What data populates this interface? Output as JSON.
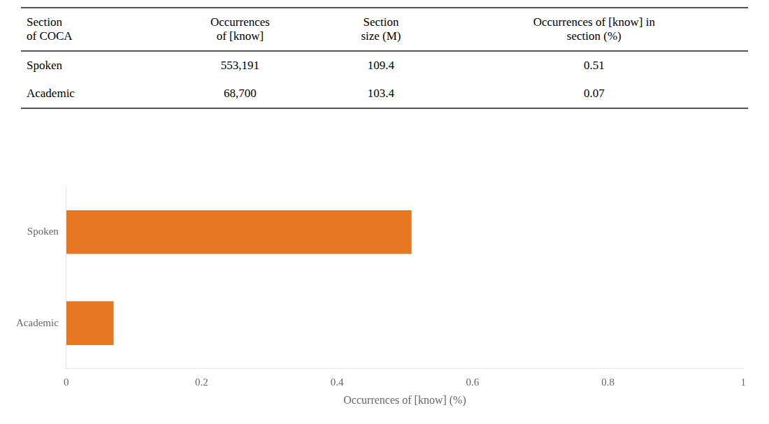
{
  "chart_data": {
    "type": "bar",
    "orientation": "horizontal",
    "table": {
      "headers": [
        "Section\nof COCA",
        "Occurrences\nof [know]",
        "Section\nsize (M)",
        "Occurrences of [know] in\nsection (%)"
      ],
      "rows": [
        [
          "Spoken",
          "553,191",
          "109.4",
          "0.51"
        ],
        [
          "Academic",
          "68,700",
          "103.4",
          "0.07"
        ]
      ]
    },
    "categories": [
      "Spoken",
      "Academic"
    ],
    "values": [
      0.51,
      0.07
    ],
    "color": "#E87722",
    "x_label": "Occurrences of [know] (%)",
    "xlim": [
      0,
      1
    ],
    "xticks": [
      0,
      0.2,
      0.4,
      0.6,
      0.8,
      1
    ],
    "grid": false
  }
}
